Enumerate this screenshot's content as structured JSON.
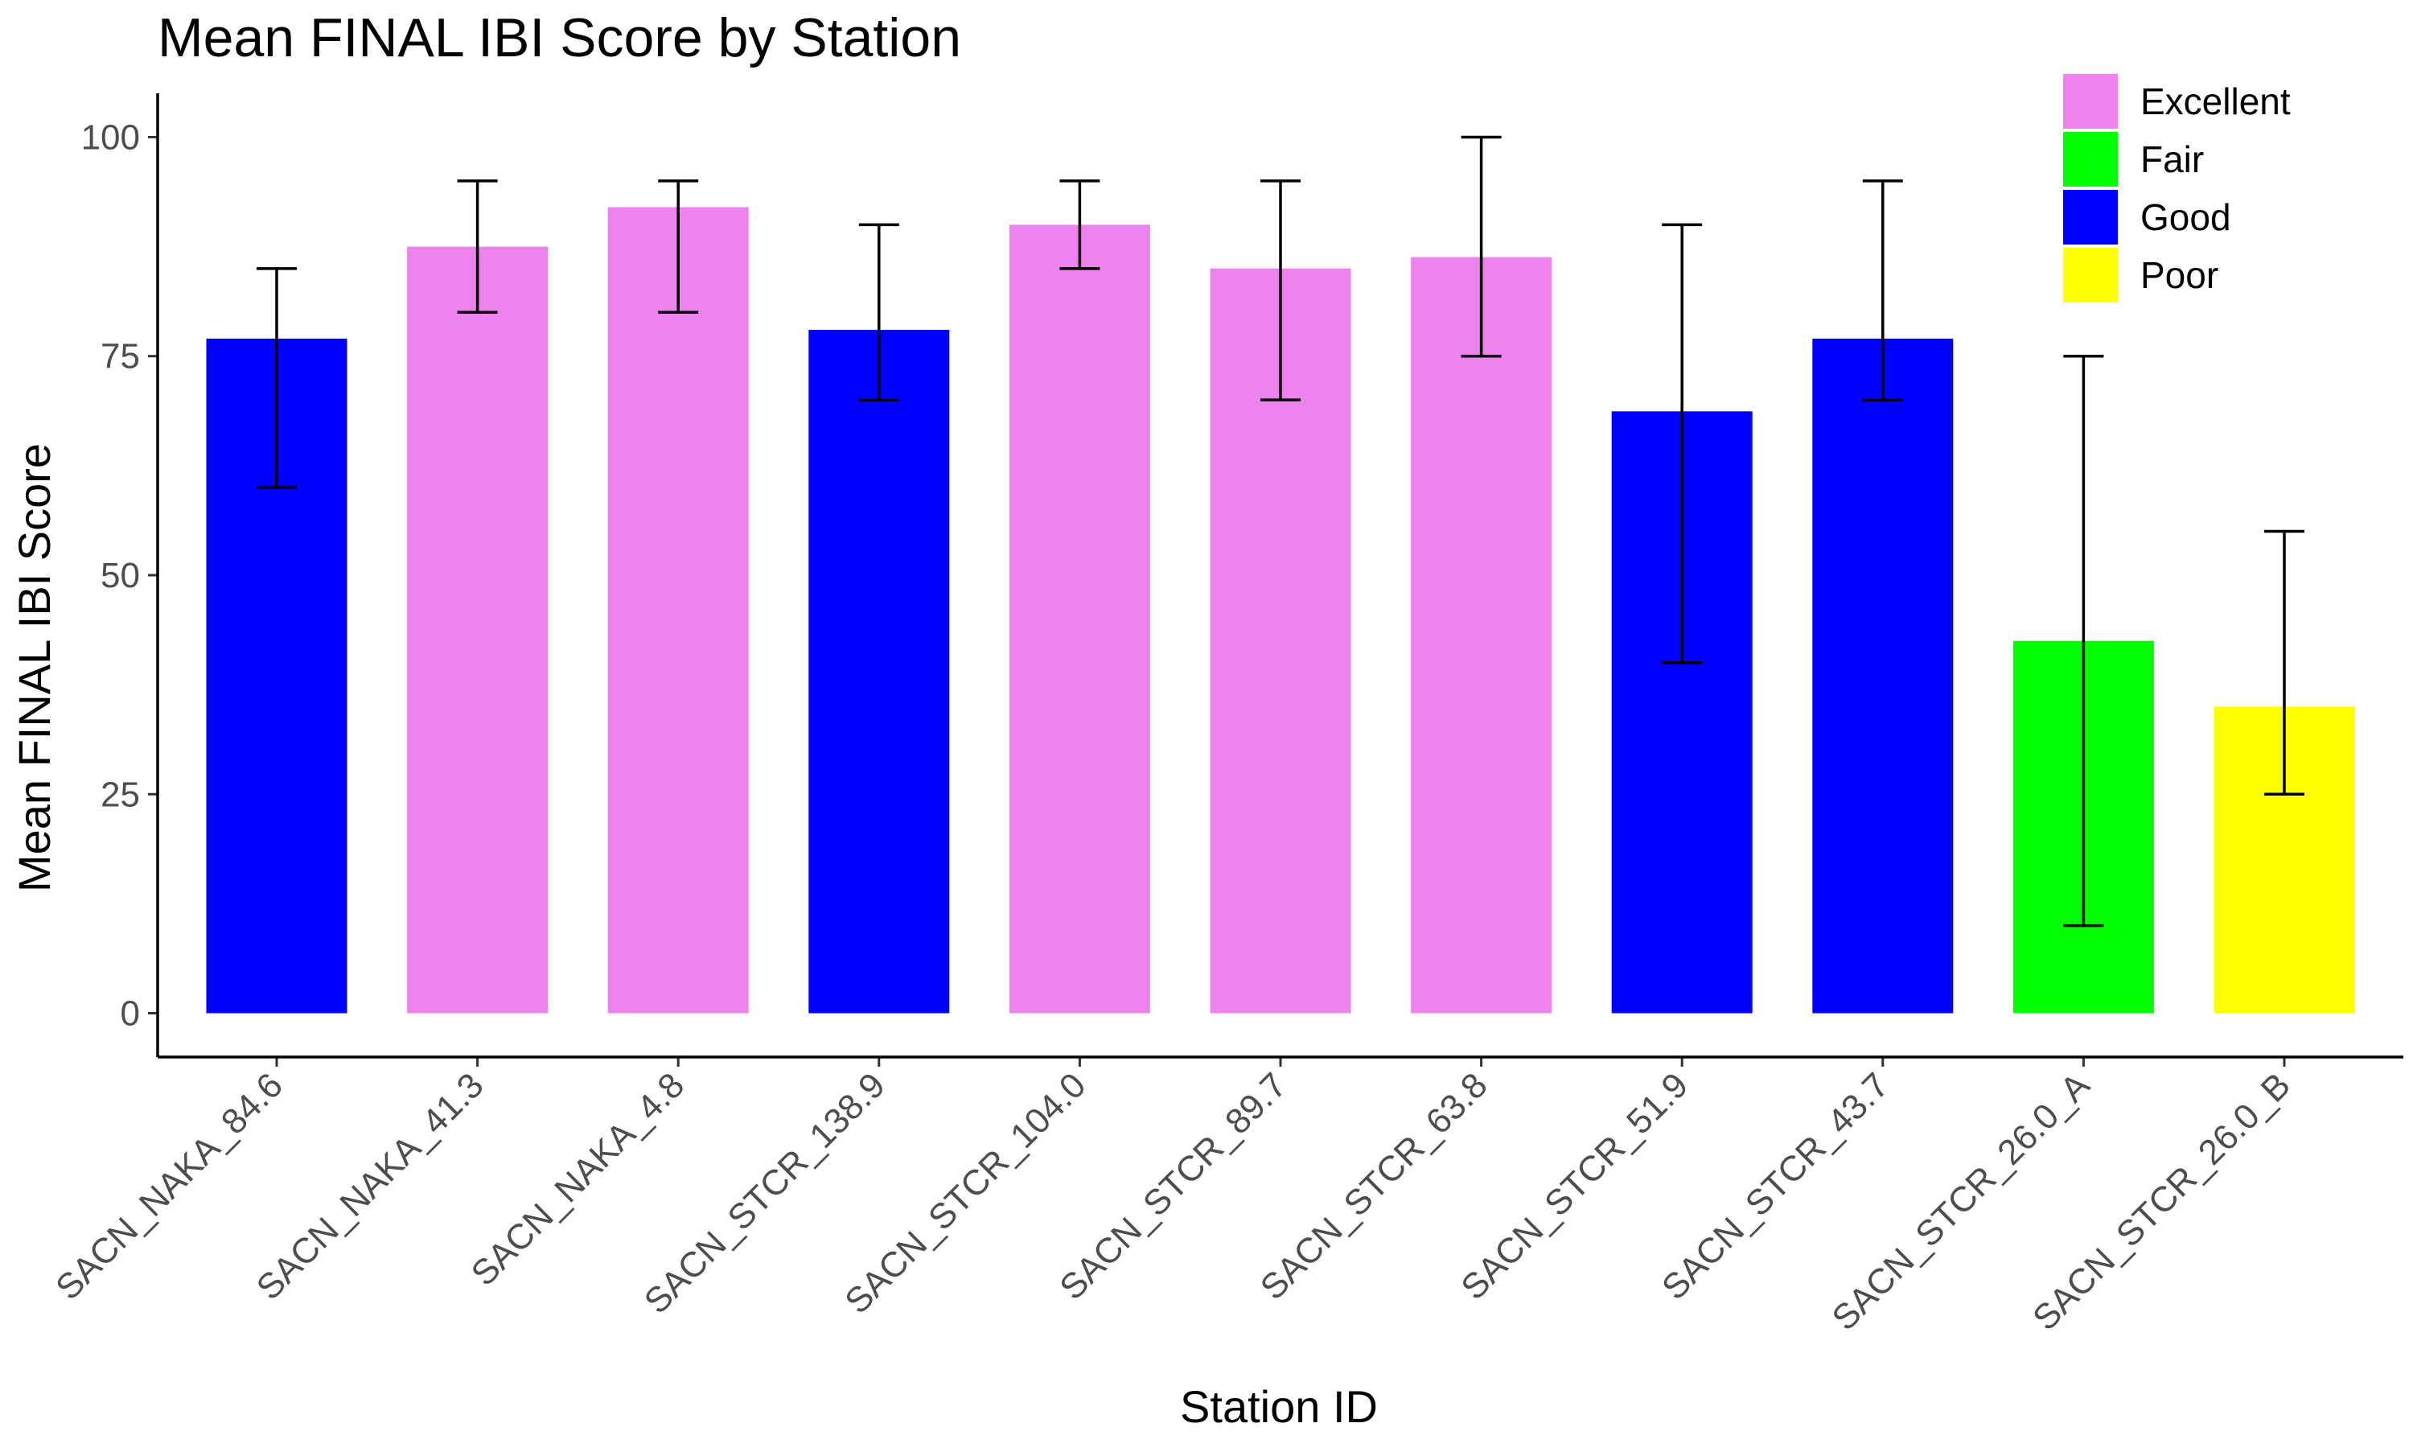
{
  "chart_data": {
    "type": "bar",
    "title": "Mean FINAL IBI Score by Station",
    "xlabel": "Station ID",
    "ylabel": "Mean FINAL IBI Score",
    "ylim": [
      -5,
      105
    ],
    "yticks": [
      0,
      25,
      50,
      75,
      100
    ],
    "grid": false,
    "legend": {
      "placement": "top-right",
      "entries": [
        {
          "label": "Excellent",
          "color": "#ee82ee"
        },
        {
          "label": "Fair",
          "color": "#00ff00"
        },
        {
          "label": "Good",
          "color": "#0000ff"
        },
        {
          "label": "Poor",
          "color": "#ffff00"
        }
      ]
    },
    "bars": [
      {
        "category": "SACN_NAKA_84.6",
        "value": 77,
        "err_low": 60,
        "err_high": 85,
        "class": "Good"
      },
      {
        "category": "SACN_NAKA_41.3",
        "value": 87.5,
        "err_low": 80,
        "err_high": 95,
        "class": "Excellent"
      },
      {
        "category": "SACN_NAKA_4.8",
        "value": 92,
        "err_low": 80,
        "err_high": 95,
        "class": "Excellent"
      },
      {
        "category": "SACN_STCR_138.9",
        "value": 78,
        "err_low": 70,
        "err_high": 90,
        "class": "Good"
      },
      {
        "category": "SACN_STCR_104.0",
        "value": 90,
        "err_low": 85,
        "err_high": 95,
        "class": "Excellent"
      },
      {
        "category": "SACN_STCR_89.7",
        "value": 85,
        "err_low": 70,
        "err_high": 95,
        "class": "Excellent"
      },
      {
        "category": "SACN_STCR_63.8",
        "value": 86.3,
        "err_low": 75,
        "err_high": 100,
        "class": "Excellent"
      },
      {
        "category": "SACN_STCR_51.9",
        "value": 68.7,
        "err_low": 40,
        "err_high": 90,
        "class": "Good"
      },
      {
        "category": "SACN_STCR_43.7",
        "value": 77,
        "err_low": 70,
        "err_high": 95,
        "class": "Good"
      },
      {
        "category": "SACN_STCR_26.0_A",
        "value": 42.5,
        "err_low": 10,
        "err_high": 75,
        "class": "Fair"
      },
      {
        "category": "SACN_STCR_26.0_B",
        "value": 35,
        "err_low": 25,
        "err_high": 55,
        "class": "Poor"
      }
    ]
  }
}
